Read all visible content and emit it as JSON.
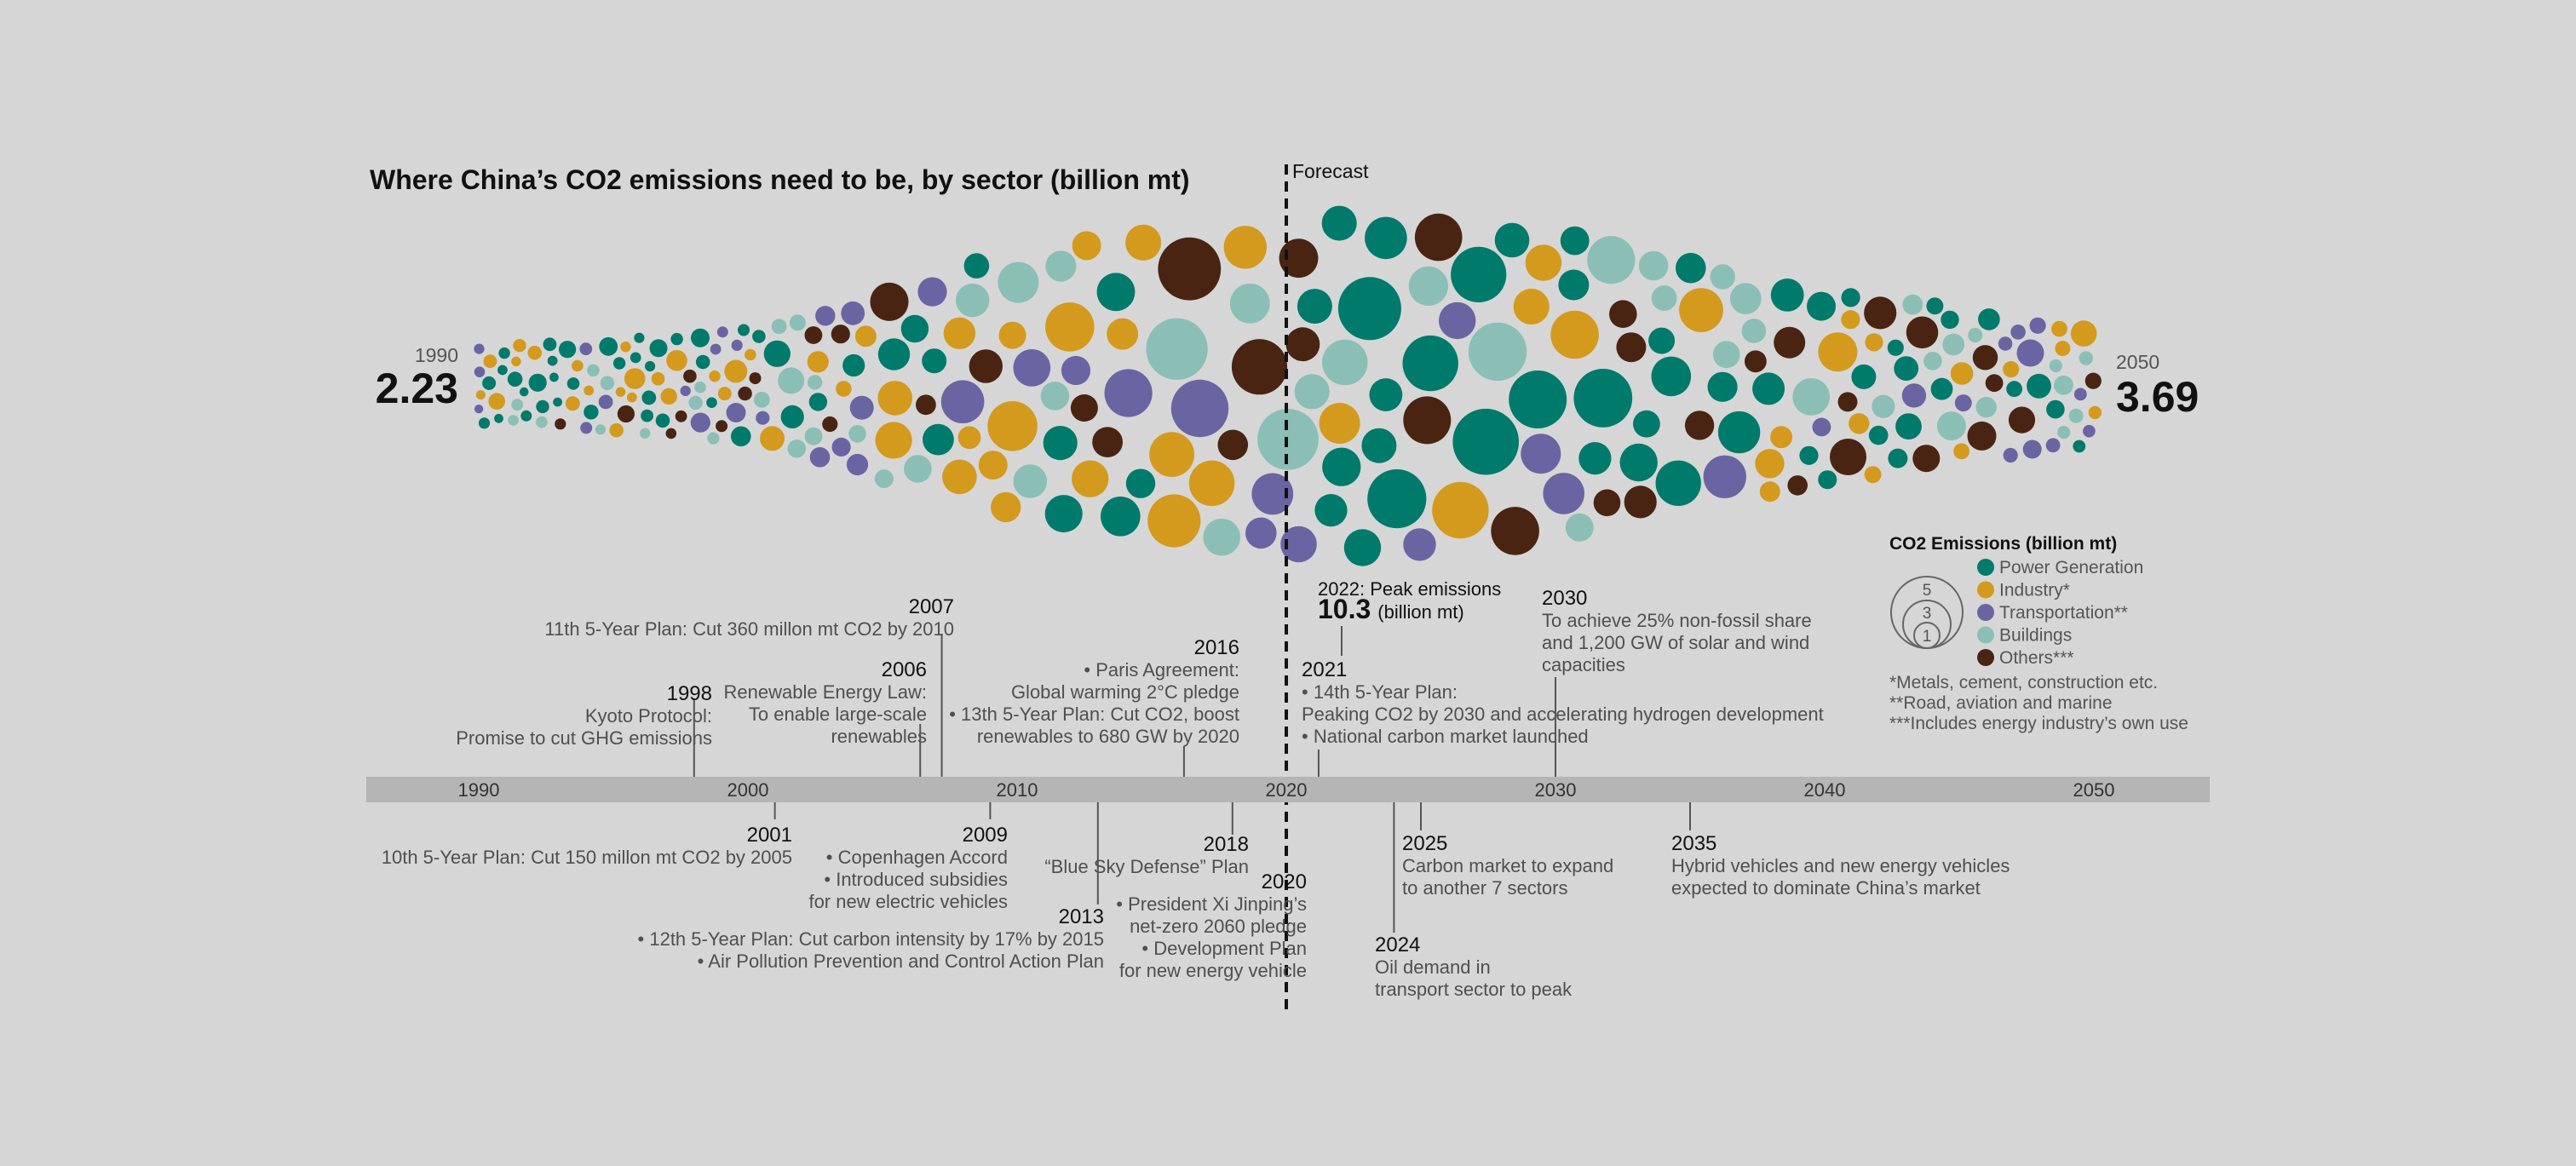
{
  "chart_data": {
    "type": "bubble-timeline",
    "title": "Where China’s CO2 emissions need to be, by sector (billion mt)",
    "forecast_label": "Forecast",
    "forecast_start_year": 2020.5,
    "x_range": [
      1990,
      2050
    ],
    "x_ticks": [
      1990,
      2000,
      2010,
      2020,
      2030,
      2040,
      2050
    ],
    "start": {
      "year": "1990",
      "value": "2.23"
    },
    "end": {
      "year": "2050",
      "value": "3.69"
    },
    "peak": {
      "year": "2022",
      "label": "Peak emissions",
      "value": "10.3",
      "unit": "(billion mt)"
    },
    "series": [
      {
        "name": "Power Generation",
        "color": "#007a6b"
      },
      {
        "name": "Industry*",
        "color": "#d49a1e"
      },
      {
        "name": "Transportation**",
        "color": "#6b64a3"
      },
      {
        "name": "Buildings",
        "color": "#8bbfb6"
      },
      {
        "name": "Others***",
        "color": "#4a2412"
      }
    ],
    "legend": {
      "title": "CO2 Emissions (billion mt)",
      "sizes": [
        "5",
        "3",
        "1"
      ],
      "notes": [
        "*Metals, cement, construction etc.",
        "**Road, aviation and marine",
        "***Includes energy industry’s own use"
      ]
    },
    "events_above": [
      {
        "year": "1998",
        "at": 1998,
        "lines": [
          "Kyoto Protocol:",
          "Promise to cut GHG emissions"
        ]
      },
      {
        "year": "2006",
        "at": 2006.4,
        "lines": [
          "Renewable Energy Law:",
          "To enable large-scale",
          "renewables"
        ]
      },
      {
        "year": "2007",
        "at": 2007.2,
        "lines": [
          "11th 5-Year Plan: Cut 360 millon mt CO2 by 2010"
        ]
      },
      {
        "year": "2016",
        "at": 2016.2,
        "lines": [
          "• Paris Agreement:",
          "Global warming 2°C pledge",
          "• 13th 5-Year Plan: Cut CO2, boost",
          "renewables to 680 GW by 2020"
        ]
      },
      {
        "year": "2021",
        "at": 2021.2,
        "lines": [
          "• 14th 5-Year Plan:",
          "Peaking CO2 by 2030  and accelerating hydrogen development",
          "• National carbon market launched"
        ]
      },
      {
        "year": "2030",
        "at": 2030,
        "lines": [
          "To achieve 25% non-fossil share",
          "and 1,200 GW of solar and wind",
          "capacities"
        ]
      }
    ],
    "events_below": [
      {
        "year": "2001",
        "at": 2001,
        "lines": [
          "10th 5-Year Plan: Cut 150 millon mt CO2 by 2005"
        ]
      },
      {
        "year": "2009",
        "at": 2009,
        "lines": [
          "• Copenhagen Accord",
          "• Introduced subsidies",
          "for new electric vehicles"
        ]
      },
      {
        "year": "2013",
        "at": 2013,
        "lines": [
          "• 12th 5-Year Plan: Cut carbon intensity by 17% by 2015",
          "• Air Pollution Prevention and Control Action Plan"
        ]
      },
      {
        "year": "2018",
        "at": 2018,
        "lines": [
          "“Blue Sky Defense” Plan"
        ]
      },
      {
        "year": "2020",
        "at": 2020,
        "lines": [
          "• President Xi Jinping’s",
          "net-zero 2060 pledge",
          "• Development Plan",
          "for new energy vehicle"
        ]
      },
      {
        "year": "2024",
        "at": 2024,
        "lines": [
          "Oil demand in",
          "transport sector to peak"
        ]
      },
      {
        "year": "2025",
        "at": 2025,
        "lines": [
          "Carbon market to expand",
          "to another 7 sectors"
        ]
      },
      {
        "year": "2035",
        "at": 2035,
        "lines": [
          "Hybrid vehicles and new energy vehicles",
          "expected to dominate China’s market"
        ]
      }
    ],
    "totals_profile": {
      "years": [
        1990,
        2000,
        2005,
        2010,
        2015,
        2020,
        2022,
        2025,
        2030,
        2035,
        2040,
        2045,
        2050
      ],
      "values": [
        2.23,
        3.4,
        5.8,
        8.2,
        9.4,
        9.9,
        10.3,
        10.1,
        9.4,
        7.6,
        6.0,
        4.7,
        3.69
      ]
    }
  }
}
